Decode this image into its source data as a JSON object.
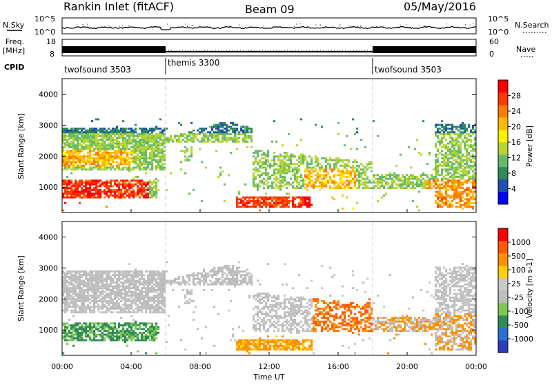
{
  "header": {
    "station": "Rankin Inlet (fitACF)",
    "beam": "Beam 09",
    "date": "05/May/2016"
  },
  "chart_data": [
    {
      "type": "line",
      "panel": "noise",
      "left_label": "N.Sky",
      "right_label": "N.Search",
      "left_ticks": [
        "10^5",
        "10^0"
      ],
      "right_ticks": [
        "10^5",
        "10^0"
      ],
      "scale": "log"
    },
    {
      "type": "bar",
      "panel": "frequency",
      "left_label_1": "Freq.",
      "left_label_2": "[MHz]",
      "right_label": "Nave",
      "left_ticks": [
        "18",
        "8"
      ],
      "right_ticks": [
        "60",
        "0"
      ],
      "cpid_label": "CPID",
      "modes": [
        {
          "name": "twofsound 3503",
          "start_hour": 0,
          "end_hour": 6
        },
        {
          "name": "themis 3300",
          "start_hour": 6,
          "end_hour": 18
        },
        {
          "name": "twofsound 3503",
          "start_hour": 18,
          "end_hour": 24
        }
      ]
    },
    {
      "type": "heatmap",
      "panel": "power",
      "ylabel": "Slant Range [km]",
      "yticks": [
        "4000",
        "3000",
        "2000",
        "1000"
      ],
      "ytick_values": [
        4000,
        3000,
        2000,
        1000
      ],
      "ylim": [
        180,
        4500
      ],
      "colorbar_label": "Power [dB]",
      "colorbar_ticks": [
        "28",
        "24",
        "20",
        "16",
        "12",
        "8",
        "4"
      ],
      "colorbar_range": [
        0,
        32
      ],
      "colors": [
        "#0000ff",
        "#1e4fb2",
        "#2e8b57",
        "#66bb6a",
        "#b6d432",
        "#fff000",
        "#ffbb00",
        "#ff7b00",
        "#ff3800",
        "#ff0000"
      ]
    },
    {
      "type": "heatmap",
      "panel": "velocity",
      "ylabel": "Slant Range [km]",
      "yticks": [
        "4000",
        "3000",
        "2000",
        "1000"
      ],
      "ytick_values": [
        4000,
        3000,
        2000,
        1000
      ],
      "ylim": [
        180,
        4500
      ],
      "colorbar_label": "Velocity [m s-1]",
      "colorbar_ticks": [
        "1000",
        "500",
        "100",
        "25",
        "-25",
        "-100",
        "-500",
        "-1000"
      ],
      "colors": [
        "#2b3fbd",
        "#2b6fd0",
        "#2e8b57",
        "#7ec850",
        "#bdbdbd",
        "#c8c8c8",
        "#ffd000",
        "#ff9000",
        "#ff5a00",
        "#ff0000"
      ]
    }
  ],
  "xaxis": {
    "label": "Time UT",
    "ticks": [
      "00:00",
      "04:00",
      "08:00",
      "12:00",
      "16:00",
      "20:00",
      "00:00"
    ],
    "tick_hours": [
      0,
      4,
      8,
      12,
      16,
      20,
      24
    ]
  }
}
